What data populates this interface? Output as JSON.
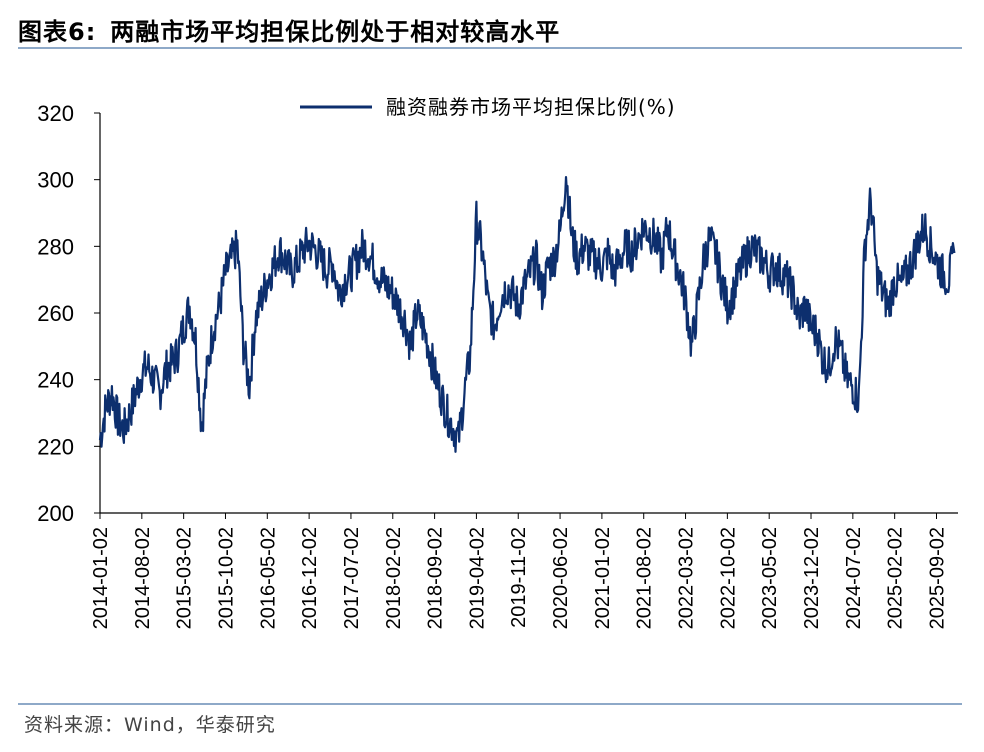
{
  "figure": {
    "label": "图表6:",
    "title": "两融市场平均担保比例处于相对较高水平",
    "source": "资料来源：Wind，华泰研究"
  },
  "chart_data": {
    "type": "line",
    "title": "两融市场平均担保比例处于相对较高水平",
    "xlabel": "",
    "ylabel": "",
    "ylim": [
      200,
      320
    ],
    "yticks": [
      200,
      220,
      240,
      260,
      280,
      300,
      320
    ],
    "xticks": [
      "2014-01-02",
      "2014-08-02",
      "2015-03-02",
      "2015-10-02",
      "2016-05-02",
      "2016-12-02",
      "2017-07-02",
      "2018-02-02",
      "2018-09-02",
      "2019-04-02",
      "2019-11-02",
      "2020-06-02",
      "2021-01-02",
      "2021-08-02",
      "2022-03-02",
      "2022-10-02",
      "2023-05-02",
      "2023-12-02",
      "2024-07-02",
      "2025-02-02",
      "2025-09-02"
    ],
    "legend_position": "top-right",
    "grid": false,
    "line_color": "#0d2f6e",
    "series": [
      {
        "name": "融资融券市场平均担保比例(%)",
        "x": [
          "2014-01",
          "2014-02",
          "2014-03",
          "2014-04",
          "2014-05",
          "2014-06",
          "2014-07",
          "2014-08",
          "2014-09",
          "2014-10",
          "2014-11",
          "2014-12",
          "2015-01",
          "2015-02",
          "2015-03",
          "2015-04",
          "2015-05",
          "2015-06",
          "2015-07",
          "2015-08",
          "2015-09",
          "2015-10",
          "2015-11",
          "2015-12",
          "2016-01",
          "2016-02",
          "2016-03",
          "2016-04",
          "2016-05",
          "2016-06",
          "2016-07",
          "2016-08",
          "2016-09",
          "2016-10",
          "2016-11",
          "2016-12",
          "2017-01",
          "2017-02",
          "2017-03",
          "2017-04",
          "2017-05",
          "2017-06",
          "2017-07",
          "2017-08",
          "2017-09",
          "2017-10",
          "2017-11",
          "2017-12",
          "2018-01",
          "2018-02",
          "2018-03",
          "2018-04",
          "2018-05",
          "2018-06",
          "2018-07",
          "2018-08",
          "2018-09",
          "2018-10",
          "2018-11",
          "2018-12",
          "2019-01",
          "2019-02",
          "2019-03",
          "2019-04",
          "2019-05",
          "2019-06",
          "2019-07",
          "2019-08",
          "2019-09",
          "2019-10",
          "2019-11",
          "2019-12",
          "2020-01",
          "2020-02",
          "2020-03",
          "2020-04",
          "2020-05",
          "2020-06",
          "2020-07",
          "2020-08",
          "2020-09",
          "2020-10",
          "2020-11",
          "2020-12",
          "2021-01",
          "2021-02",
          "2021-03",
          "2021-04",
          "2021-05",
          "2021-06",
          "2021-07",
          "2021-08",
          "2021-09",
          "2021-10",
          "2021-11",
          "2021-12",
          "2022-01",
          "2022-02",
          "2022-03",
          "2022-04",
          "2022-05",
          "2022-06",
          "2022-07",
          "2022-08",
          "2022-09",
          "2022-10",
          "2022-11",
          "2022-12",
          "2023-01",
          "2023-02",
          "2023-03",
          "2023-04",
          "2023-05",
          "2023-06",
          "2023-07",
          "2023-08",
          "2023-09",
          "2023-10",
          "2023-11",
          "2023-12",
          "2024-01",
          "2024-02",
          "2024-03",
          "2024-04",
          "2024-05",
          "2024-06",
          "2024-07",
          "2024-08",
          "2024-09",
          "2024-10",
          "2024-11",
          "2024-12",
          "2025-01",
          "2025-02",
          "2025-03",
          "2025-04",
          "2025-05",
          "2025-06",
          "2025-07",
          "2025-08",
          "2025-09",
          "2025-10",
          "2025-11",
          "2025-12"
        ],
        "values": [
          222,
          232,
          236,
          228,
          225,
          230,
          236,
          242,
          244,
          240,
          236,
          243,
          245,
          248,
          256,
          262,
          252,
          226,
          244,
          256,
          262,
          272,
          276,
          280,
          250,
          238,
          258,
          264,
          270,
          274,
          279,
          276,
          272,
          275,
          279,
          281,
          279,
          276,
          273,
          275,
          266,
          270,
          272,
          276,
          280,
          278,
          274,
          270,
          268,
          266,
          262,
          258,
          250,
          260,
          256,
          250,
          242,
          236,
          230,
          226,
          222,
          236,
          248,
          288,
          278,
          262,
          256,
          264,
          268,
          266,
          262,
          268,
          272,
          276,
          266,
          274,
          276,
          284,
          302,
          282,
          276,
          280,
          277,
          276,
          274,
          278,
          272,
          276,
          280,
          278,
          282,
          286,
          284,
          282,
          276,
          286,
          278,
          272,
          264,
          250,
          262,
          276,
          282,
          278,
          270,
          262,
          266,
          272,
          276,
          280,
          278,
          276,
          272,
          274,
          272,
          270,
          266,
          258,
          262,
          256,
          254,
          246,
          244,
          252,
          248,
          240,
          238,
          234,
          280,
          294,
          272,
          266,
          262,
          270,
          268,
          272,
          276,
          282,
          286,
          280,
          276,
          272,
          270,
          278
        ]
      }
    ]
  }
}
